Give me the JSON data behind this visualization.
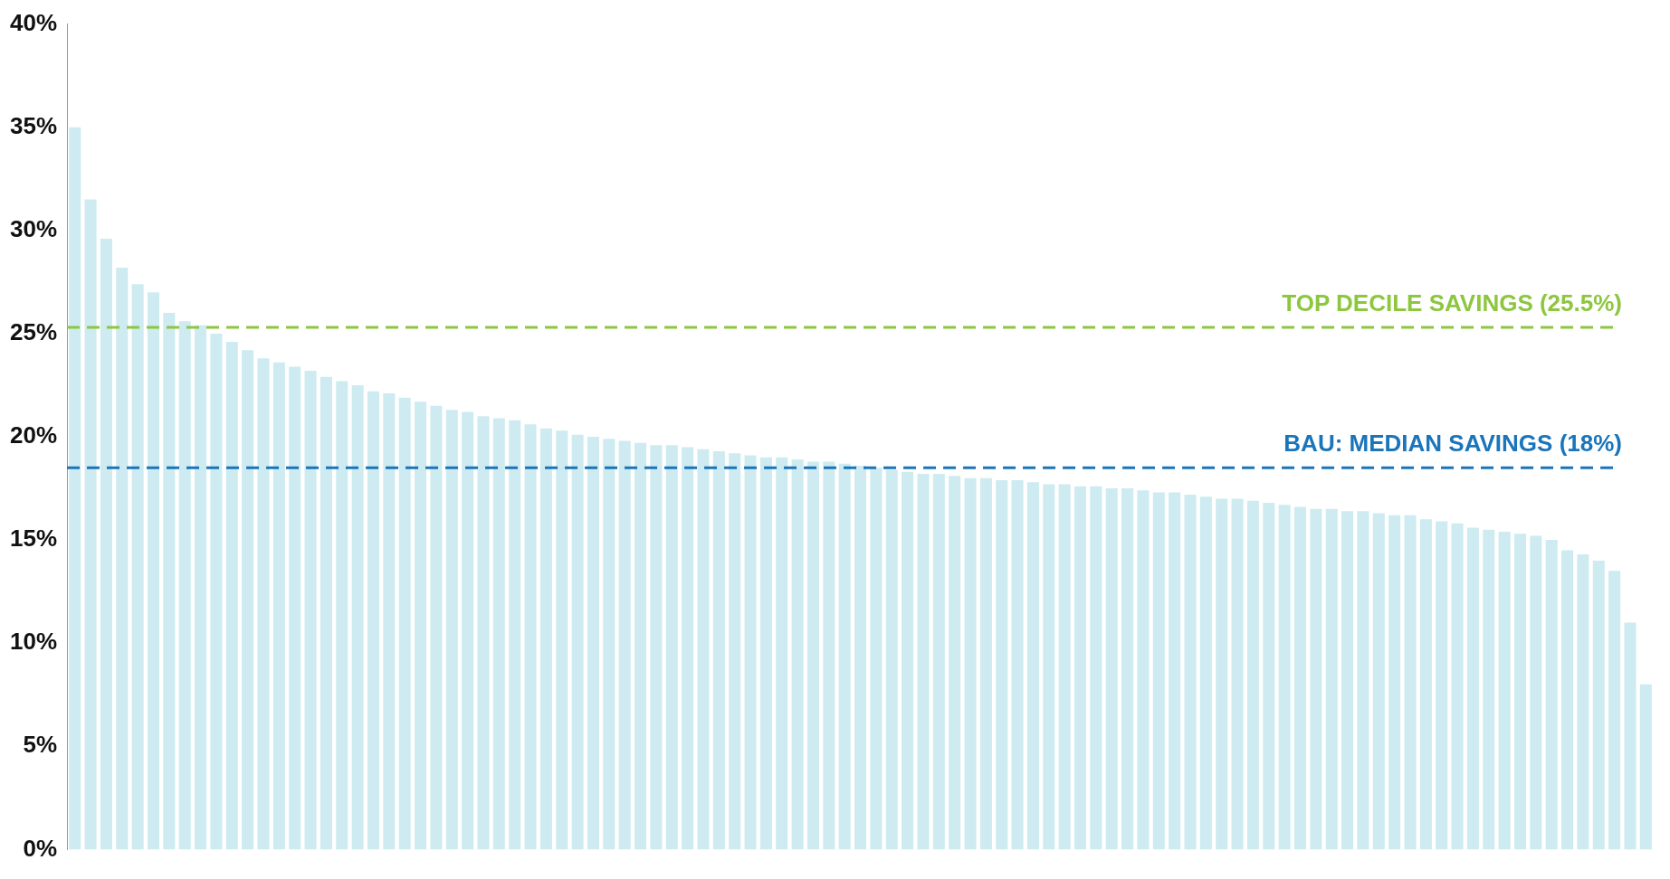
{
  "chart_data": {
    "type": "bar",
    "categories": [
      null,
      null,
      null,
      null,
      null,
      null,
      null,
      null,
      null,
      null,
      null,
      null,
      null,
      null,
      null,
      null,
      null,
      null,
      null,
      null,
      null,
      null,
      null,
      null,
      null,
      null,
      null,
      null,
      null,
      null,
      null,
      null,
      null,
      null,
      null,
      null,
      null,
      null,
      null,
      null,
      null,
      null,
      null,
      null,
      null,
      null,
      null,
      null,
      null,
      null,
      null,
      null,
      null,
      null,
      null,
      null,
      null,
      null,
      null,
      null,
      null,
      null,
      null,
      null,
      null,
      null,
      null,
      null,
      null,
      null,
      null,
      null,
      null,
      null,
      null,
      null,
      null,
      null,
      null,
      null,
      null,
      null,
      null,
      null,
      null,
      null,
      null,
      null,
      null,
      null,
      null,
      null,
      null,
      null,
      null,
      null,
      null,
      null,
      null,
      null,
      null
    ],
    "values": [
      35,
      31.5,
      29.6,
      28.2,
      27.4,
      27,
      26,
      25.6,
      25.4,
      25,
      24.6,
      24.2,
      23.8,
      23.6,
      23.4,
      23.2,
      22.9,
      22.7,
      22.5,
      22.2,
      22.1,
      21.9,
      21.7,
      21.5,
      21.3,
      21.2,
      21,
      20.9,
      20.8,
      20.6,
      20.4,
      20.3,
      20.1,
      20,
      19.9,
      19.8,
      19.7,
      19.6,
      19.6,
      19.5,
      19.4,
      19.3,
      19.2,
      19.1,
      19,
      19,
      18.9,
      18.8,
      18.8,
      18.7,
      18.6,
      18.5,
      18.4,
      18.3,
      18.2,
      18.2,
      18.1,
      18,
      18,
      17.9,
      17.9,
      17.8,
      17.7,
      17.7,
      17.6,
      17.6,
      17.5,
      17.5,
      17.4,
      17.3,
      17.3,
      17.2,
      17.1,
      17,
      17,
      16.9,
      16.8,
      16.7,
      16.6,
      16.5,
      16.5,
      16.4,
      16.4,
      16.3,
      16.2,
      16.2,
      16,
      15.9,
      15.8,
      15.6,
      15.5,
      15.4,
      15.3,
      15.2,
      15,
      14.5,
      14.3,
      14,
      13.5,
      11,
      8
    ],
    "color": "#cdebf0",
    "ylim": [
      0,
      40
    ],
    "yticks": [
      {
        "value": 0,
        "label": "0%"
      },
      {
        "value": 5,
        "label": "5%"
      },
      {
        "value": 10,
        "label": "10%"
      },
      {
        "value": 15,
        "label": "15%"
      },
      {
        "value": 20,
        "label": "20%"
      },
      {
        "value": 25,
        "label": "25%"
      },
      {
        "value": 30,
        "label": "30%"
      },
      {
        "value": 35,
        "label": "35%"
      },
      {
        "value": 40,
        "label": "40%"
      }
    ],
    "tick_labels": "y",
    "grid": false,
    "legend": false,
    "ref_lines": [
      {
        "axis": "y",
        "value": 25.3,
        "label": "TOP DECILE SAVINGS (25.5%)",
        "color": "#8dc63f",
        "line_style": "dashed"
      },
      {
        "axis": "y",
        "value": 18.5,
        "label": "BAU: MEDIAN SAVINGS (18%)",
        "color": "#1a75bb",
        "line_style": "dashed"
      }
    ]
  }
}
